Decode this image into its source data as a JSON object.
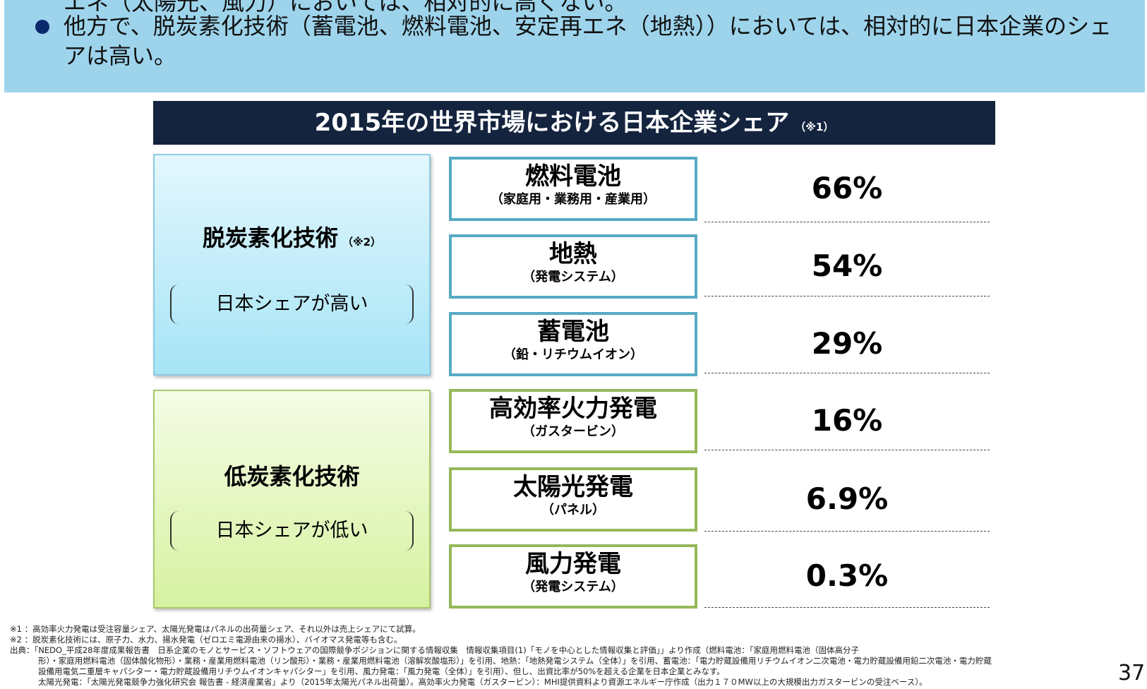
{
  "banner": {
    "line_partial": "エネ（太陽光、風力）においては、相対的に高くない。",
    "bullet": "他方で、脱炭素化技術（蓄電池、燃料電池、安定再エネ（地熱））においては、相対的に日本企業のシェアは高い。"
  },
  "title": {
    "text": "2015年の世界市場における日本企業シェア",
    "note": "（※1）"
  },
  "categories": [
    {
      "title": "脱炭素化技術",
      "note": "（※2）",
      "sub": "日本シェアが高い"
    },
    {
      "title": "低炭素化技術",
      "sub": "日本シェアが低い"
    }
  ],
  "items": [
    {
      "name": "燃料電池",
      "sub": "（家庭用・業務用・産業用）",
      "share": "66%"
    },
    {
      "name": "地熱",
      "sub": "（発電システム）",
      "share": "54%"
    },
    {
      "name": "蓄電池",
      "sub": "（鉛・リチウムイオン）",
      "share": "29%"
    },
    {
      "name": "高効率火力発電",
      "sub": "（ガスタービン）",
      "share": "16%"
    },
    {
      "name": "太陽光発電",
      "sub": "（パネル）",
      "share": "6.9%"
    },
    {
      "name": "風力発電",
      "sub": "（発電システム）",
      "share": "0.3%"
    }
  ],
  "notes": [
    "※1 ：高効率火力発電は受注容量シェア、太陽光発電はパネルの出荷量シェア、それ以外は売上シェアにて試算。",
    "※2 ：脱炭素化技術には、原子力、水力、揚水発電（ゼロエミ電源由来の揚水）、バイオマス発電等も含む。",
    "出典：「NEDO_平成28年度成果報告書　日系企業のモノとサービス・ソフトウェアの国際競争ポジションに関する情報収集　情報収集項目(1)「モノを中心とした情報収集と評価」」より作成（燃料電池：「家庭用燃料電池（固体高分子",
    "形）・家庭用燃料電池（固体酸化物形）・業務・産業用燃料電池（リン酸形）・業務・産業用燃料電池（溶解炭酸塩形）」を引用、地熱：「地熱発電システム（全体）」を引用、蓄電池：「電力貯蔵設備用リチウムイオン二次電池・電力貯蔵設備用鉛二次電池・電力貯蔵",
    "設備用電気二重層キャパシター・電力貯蔵設備用リチウムイオンキャパシター」を引用、風力発電：「風力発電（全体）」を引用）、但し、出資比率が50%を超える企業を日本企業とみなす。",
    "太陽光発電：「太陽光発電競争力強化研究会 報告書 - 経済産業省」より（2015年太陽光パネル出荷量）。高効率火力発電（ガスタービン）：MHI提供資料より資源エネルギー庁作成（出力１７０MW以上の大規模出力ガスタービンの受注ベース）。"
  ],
  "page_number": "37",
  "colors": {
    "banner": "#9dd4ec",
    "title_bar": "#14243f",
    "blue_border": "#56aac4",
    "green_border": "#95b85a"
  }
}
